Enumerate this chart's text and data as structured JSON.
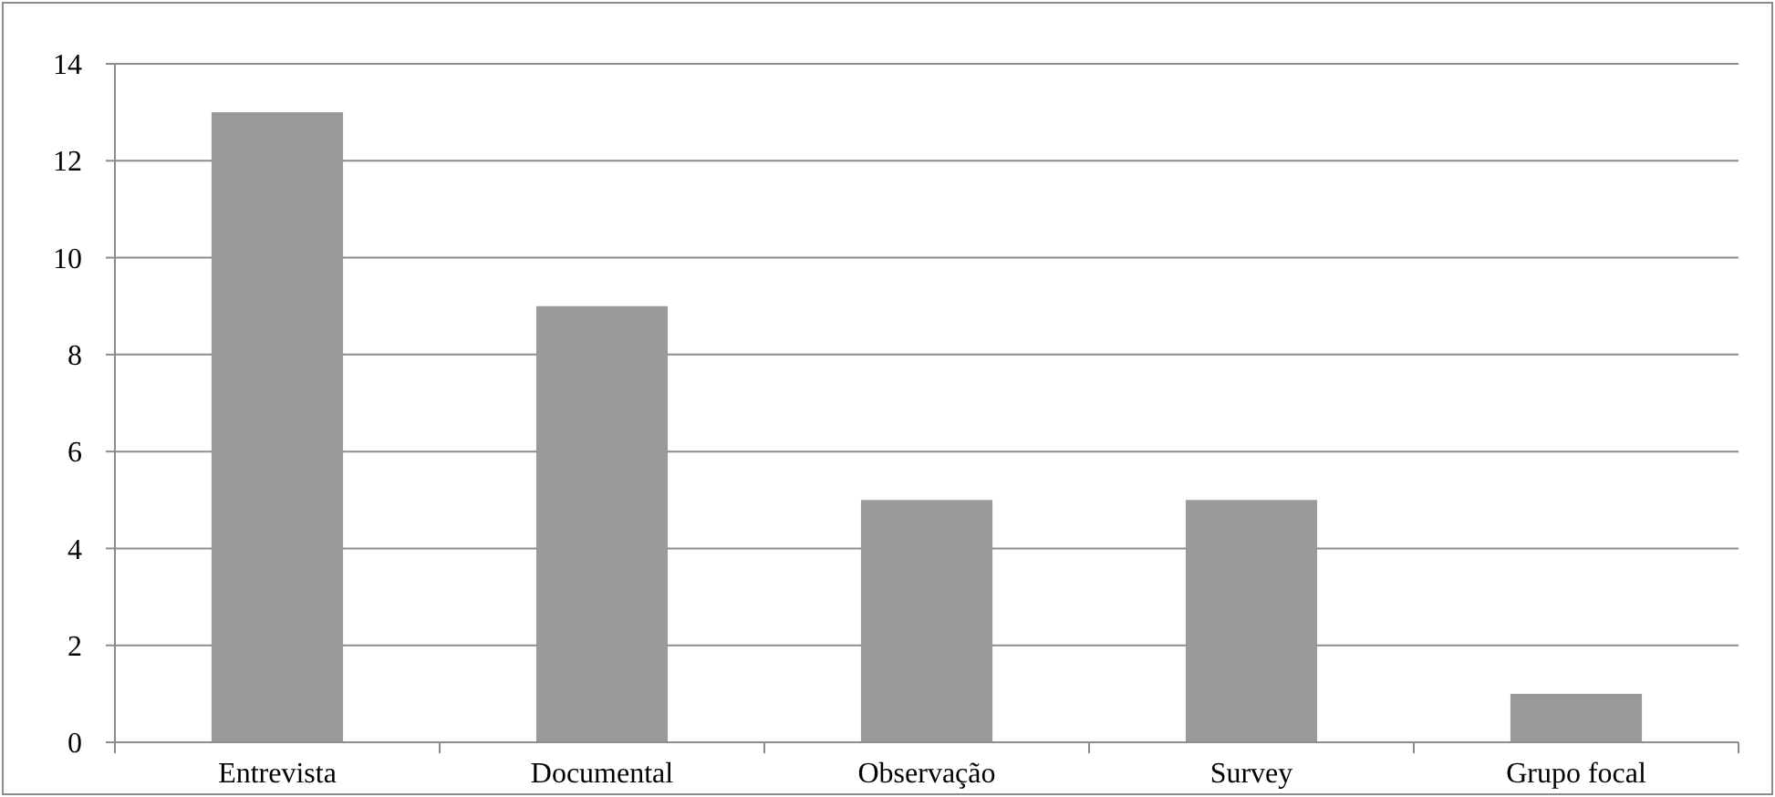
{
  "chart_data": {
    "type": "bar",
    "categories": [
      "Entrevista",
      "Documental",
      "Observação",
      "Survey",
      "Grupo focal"
    ],
    "values": [
      13,
      9,
      5,
      5,
      1
    ],
    "color": "#999999",
    "ylim": [
      0,
      14
    ],
    "yticks": [
      0,
      2,
      4,
      6,
      8,
      10,
      12,
      14
    ],
    "grid": "y"
  }
}
